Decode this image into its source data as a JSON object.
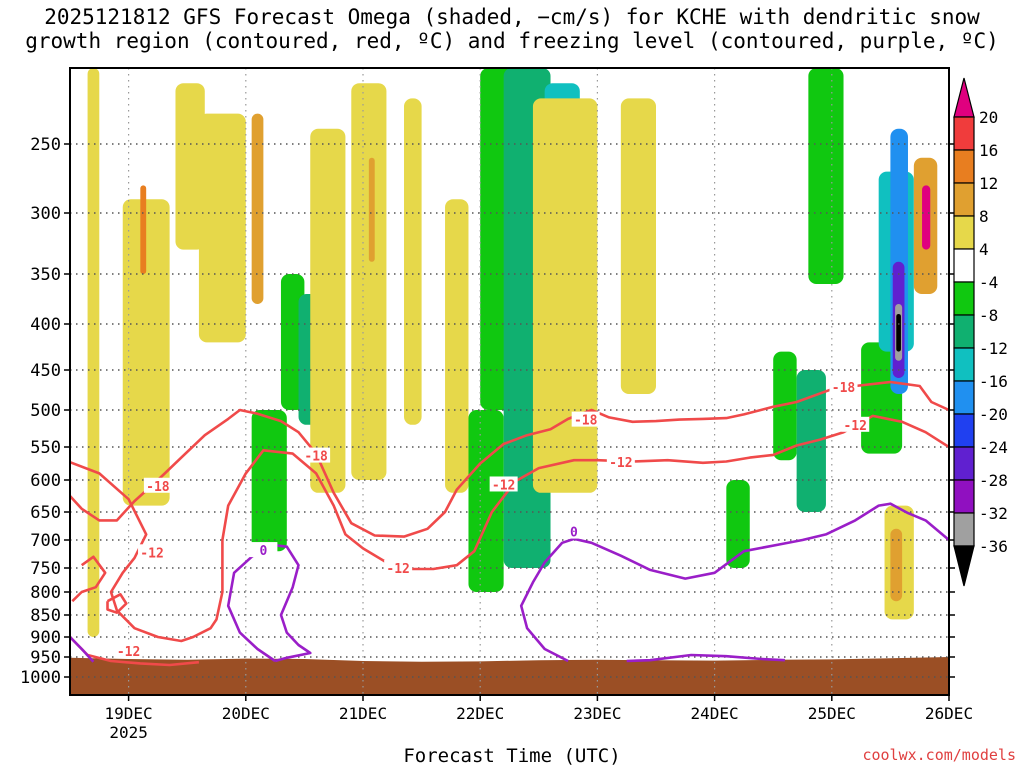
{
  "title": {
    "line1": "2025121812 GFS Forecast Omega (shaded, −cm/s) for KCHE with dendritic snow",
    "line2": "growth region (contoured, red, ºC) and freezing level (contoured, purple, ºC)"
  },
  "credit": "coolwx.com/models",
  "chart_data": {
    "type": "heatmap",
    "title": "2025121812 GFS Forecast Omega (shaded, −cm/s) for KCHE with dendritic snow growth region (contoured, red, ºC) and freezing level (contoured, purple, ºC)",
    "xlabel": "Forecast Time (UTC)",
    "ylabel": "Pressure (hPa)",
    "x_ticks": [
      "19DEC",
      "20DEC",
      "21DEC",
      "22DEC",
      "23DEC",
      "24DEC",
      "25DEC",
      "26DEC"
    ],
    "x_year_label": "2025",
    "y_ticks": [
      250,
      300,
      350,
      400,
      450,
      500,
      550,
      600,
      650,
      700,
      750,
      800,
      850,
      900,
      950,
      1000
    ],
    "ylim": [
      200,
      1050
    ],
    "xlim_days": [
      18.5,
      26.0
    ],
    "colorbar": {
      "labels": [
        "20",
        "16",
        "12",
        "8",
        "4",
        "-4",
        "-8",
        "-12",
        "-16",
        "-20",
        "-24",
        "-28",
        "-32",
        "-36"
      ],
      "bins": [
        {
          "range": "> 20",
          "color": "#e0007f"
        },
        {
          "range": "16 to 20",
          "color": "#f03c3c"
        },
        {
          "range": "12 to 16",
          "color": "#e87e20"
        },
        {
          "range": "8 to 12",
          "color": "#e0a030"
        },
        {
          "range": "4 to 8",
          "color": "#e6d84a"
        },
        {
          "range": "-4 to 4",
          "color": "#ffffff"
        },
        {
          "range": "-8 to -4",
          "color": "#10c810"
        },
        {
          "range": "-12 to -8",
          "color": "#10b070"
        },
        {
          "range": "-16 to -12",
          "color": "#10c0c0"
        },
        {
          "range": "-20 to -16",
          "color": "#2090f0"
        },
        {
          "range": "-24 to -20",
          "color": "#2040f0"
        },
        {
          "range": "-28 to -24",
          "color": "#6020d0"
        },
        {
          "range": "-32 to -28",
          "color": "#9010c0"
        },
        {
          "range": "-36 to -32",
          "color": "#a0a0a0"
        },
        {
          "range": "< -36",
          "color": "#000000"
        }
      ]
    },
    "ground_color": "#9b4f25",
    "contours": [
      {
        "name": "dgz-upper",
        "level": -18,
        "color": "#f04a4a",
        "labels": [
          {
            "t": 19.25,
            "p": 609,
            "text": "-18"
          },
          {
            "t": 20.6,
            "p": 563,
            "text": "-18"
          },
          {
            "t": 22.9,
            "p": 513,
            "text": "-18"
          },
          {
            "t": 25.1,
            "p": 471,
            "text": "-18"
          }
        ],
        "points": [
          [
            18.5,
            625
          ],
          [
            18.6,
            645
          ],
          [
            18.75,
            665
          ],
          [
            18.9,
            665
          ],
          [
            19.05,
            633
          ],
          [
            19.25,
            600
          ],
          [
            19.45,
            566
          ],
          [
            19.65,
            534
          ],
          [
            19.85,
            512
          ],
          [
            19.95,
            500
          ],
          [
            20.1,
            505
          ],
          [
            20.3,
            515
          ],
          [
            20.45,
            530
          ],
          [
            20.6,
            560
          ],
          [
            20.75,
            620
          ],
          [
            20.9,
            670
          ],
          [
            21.1,
            692
          ],
          [
            21.35,
            694
          ],
          [
            21.55,
            680
          ],
          [
            21.7,
            650
          ],
          [
            21.8,
            615
          ],
          [
            22.0,
            575
          ],
          [
            22.2,
            546
          ],
          [
            22.4,
            534
          ],
          [
            22.6,
            526
          ],
          [
            22.75,
            512
          ],
          [
            22.95,
            500
          ],
          [
            23.1,
            510
          ],
          [
            23.3,
            516
          ],
          [
            23.5,
            515
          ],
          [
            23.7,
            513
          ],
          [
            23.9,
            512
          ],
          [
            24.1,
            511
          ],
          [
            24.25,
            506
          ],
          [
            24.5,
            496
          ],
          [
            24.7,
            490
          ],
          [
            25.0,
            474
          ],
          [
            25.2,
            470
          ],
          [
            25.5,
            465
          ],
          [
            25.75,
            470
          ],
          [
            25.85,
            490
          ],
          [
            26.0,
            500
          ]
        ]
      },
      {
        "name": "dgz-lower",
        "level": -12,
        "color": "#f04a4a",
        "labels": [
          {
            "t": 19.2,
            "p": 722,
            "text": "-12"
          },
          {
            "t": 19.0,
            "p": 935,
            "text": "-12"
          },
          {
            "t": 21.3,
            "p": 750,
            "text": "-12"
          },
          {
            "t": 22.2,
            "p": 607,
            "text": "-12"
          },
          {
            "t": 23.2,
            "p": 573,
            "text": "-12"
          },
          {
            "t": 25.2,
            "p": 520,
            "text": "-12"
          }
        ],
        "points": [
          [
            18.5,
            573
          ],
          [
            18.75,
            590
          ],
          [
            19.0,
            630
          ],
          [
            19.15,
            690
          ],
          [
            19.05,
            732
          ],
          [
            18.95,
            760
          ],
          [
            18.85,
            800
          ],
          [
            18.9,
            840
          ],
          [
            19.05,
            880
          ],
          [
            19.25,
            900
          ],
          [
            19.45,
            910
          ],
          [
            19.55,
            900
          ],
          [
            19.7,
            880
          ],
          [
            19.75,
            860
          ],
          [
            19.8,
            800
          ],
          [
            19.8,
            700
          ],
          [
            19.85,
            640
          ],
          [
            20.0,
            590
          ],
          [
            20.15,
            555
          ],
          [
            20.4,
            560
          ],
          [
            20.6,
            590
          ],
          [
            20.75,
            640
          ],
          [
            20.85,
            690
          ],
          [
            21.0,
            715
          ],
          [
            21.2,
            740
          ],
          [
            21.4,
            752
          ],
          [
            21.6,
            752
          ],
          [
            21.8,
            745
          ],
          [
            21.95,
            720
          ],
          [
            22.1,
            650
          ],
          [
            22.3,
            602
          ],
          [
            22.5,
            582
          ],
          [
            22.8,
            570
          ],
          [
            23.0,
            570
          ],
          [
            23.3,
            572
          ],
          [
            23.6,
            570
          ],
          [
            23.9,
            574
          ],
          [
            24.1,
            572
          ],
          [
            24.3,
            566
          ],
          [
            24.5,
            562
          ],
          [
            24.7,
            548
          ],
          [
            24.9,
            540
          ],
          [
            25.1,
            530
          ],
          [
            25.35,
            508
          ],
          [
            25.6,
            516
          ],
          [
            25.8,
            530
          ],
          [
            25.95,
            545
          ],
          [
            26.0,
            550
          ]
        ]
      },
      {
        "name": "dgz-lower-near-ground",
        "level": -12,
        "color": "#f04a4a",
        "labels": [],
        "points": [
          [
            18.5,
            900
          ],
          [
            18.65,
            945
          ],
          [
            18.85,
            960
          ],
          [
            19.1,
            966
          ],
          [
            19.35,
            970
          ],
          [
            19.6,
            963
          ]
        ]
      },
      {
        "name": "dgz-lower-pocket",
        "level": -12,
        "color": "#f04a4a",
        "labels": [],
        "points": [
          [
            18.6,
            745
          ],
          [
            18.7,
            730
          ],
          [
            18.8,
            760
          ],
          [
            18.72,
            790
          ],
          [
            18.6,
            800
          ],
          [
            18.52,
            820
          ]
        ]
      },
      {
        "name": "dgz-small-loop",
        "level": -12,
        "color": "#f04a4a",
        "labels": [],
        "points": [
          [
            18.82,
            820
          ],
          [
            18.93,
            805
          ],
          [
            18.98,
            825
          ],
          [
            18.9,
            845
          ],
          [
            18.82,
            838
          ],
          [
            18.82,
            820
          ]
        ]
      },
      {
        "name": "freezing-level-1",
        "level": 0,
        "color": "#9a1ec8",
        "labels": [
          {
            "t": 20.15,
            "p": 718,
            "text": "0"
          }
        ],
        "points": [
          [
            20.25,
            960
          ],
          [
            20.35,
            952
          ],
          [
            20.55,
            940
          ],
          [
            20.45,
            920
          ],
          [
            20.35,
            890
          ],
          [
            20.3,
            850
          ],
          [
            20.4,
            790
          ],
          [
            20.45,
            745
          ],
          [
            20.35,
            712
          ],
          [
            20.2,
            708
          ],
          [
            20.05,
            730
          ],
          [
            19.9,
            760
          ],
          [
            19.85,
            830
          ],
          [
            19.95,
            890
          ],
          [
            20.1,
            930
          ],
          [
            20.25,
            960
          ]
        ]
      },
      {
        "name": "freezing-level-2",
        "level": 0,
        "color": "#9a1ec8",
        "labels": [
          {
            "t": 22.8,
            "p": 685,
            "text": "0"
          }
        ],
        "points": [
          [
            22.75,
            960
          ],
          [
            22.55,
            930
          ],
          [
            22.4,
            880
          ],
          [
            22.35,
            830
          ],
          [
            22.45,
            780
          ],
          [
            22.55,
            740
          ],
          [
            22.7,
            705
          ],
          [
            22.8,
            698
          ],
          [
            22.95,
            705
          ],
          [
            23.2,
            728
          ],
          [
            23.45,
            754
          ],
          [
            23.75,
            772
          ],
          [
            24.0,
            760
          ],
          [
            24.25,
            720
          ],
          [
            24.55,
            708
          ],
          [
            24.75,
            700
          ],
          [
            24.95,
            690
          ],
          [
            25.2,
            665
          ],
          [
            25.4,
            640
          ],
          [
            25.5,
            637
          ],
          [
            25.65,
            652
          ],
          [
            25.8,
            665
          ],
          [
            26.0,
            700
          ]
        ]
      },
      {
        "name": "freezing-level-3",
        "level": 0,
        "color": "#9a1ec8",
        "labels": [],
        "points": [
          [
            23.25,
            960
          ],
          [
            23.45,
            958
          ],
          [
            23.8,
            945
          ],
          [
            24.1,
            948
          ],
          [
            24.4,
            955
          ],
          [
            24.6,
            958
          ]
        ]
      },
      {
        "name": "freezing-level-4",
        "level": 0,
        "color": "#9a1ec8",
        "labels": [],
        "points": [
          [
            18.5,
            900
          ],
          [
            18.6,
            930
          ],
          [
            18.7,
            962
          ]
        ]
      }
    ],
    "shaded_regions": [
      {
        "t": [
          18.65,
          18.75
        ],
        "p": [
          200,
          900
        ],
        "value": 6
      },
      {
        "t": [
          18.95,
          19.35
        ],
        "p": [
          290,
          640
        ],
        "value": 6
      },
      {
        "t": [
          19.1,
          19.15
        ],
        "p": [
          280,
          350
        ],
        "value": 14
      },
      {
        "t": [
          19.4,
          19.65
        ],
        "p": [
          210,
          330
        ],
        "value": 6
      },
      {
        "t": [
          19.6,
          20.0
        ],
        "p": [
          230,
          420
        ],
        "value": 6
      },
      {
        "t": [
          20.05,
          20.15
        ],
        "p": [
          230,
          380
        ],
        "value": 10
      },
      {
        "t": [
          20.05,
          20.35
        ],
        "p": [
          500,
          720
        ],
        "value": -6
      },
      {
        "t": [
          20.3,
          20.5
        ],
        "p": [
          350,
          500
        ],
        "value": -6
      },
      {
        "t": [
          20.45,
          20.75
        ],
        "p": [
          370,
          520
        ],
        "value": -10
      },
      {
        "t": [
          20.55,
          20.85
        ],
        "p": [
          240,
          620
        ],
        "value": 6
      },
      {
        "t": [
          20.9,
          21.2
        ],
        "p": [
          210,
          600
        ],
        "value": 6
      },
      {
        "t": [
          21.05,
          21.1
        ],
        "p": [
          260,
          340
        ],
        "value": 10
      },
      {
        "t": [
          21.35,
          21.5
        ],
        "p": [
          220,
          520
        ],
        "value": 6
      },
      {
        "t": [
          21.7,
          21.9
        ],
        "p": [
          290,
          620
        ],
        "value": 6
      },
      {
        "t": [
          21.9,
          22.2
        ],
        "p": [
          500,
          800
        ],
        "value": -6
      },
      {
        "t": [
          22.0,
          22.4
        ],
        "p": [
          200,
          500
        ],
        "value": -8
      },
      {
        "t": [
          22.2,
          22.6
        ],
        "p": [
          200,
          750
        ],
        "value": -10
      },
      {
        "t": [
          22.55,
          22.85
        ],
        "p": [
          210,
          500
        ],
        "value": -14
      },
      {
        "t": [
          22.45,
          23.0
        ],
        "p": [
          220,
          620
        ],
        "value": 6
      },
      {
        "t": [
          23.2,
          23.5
        ],
        "p": [
          220,
          480
        ],
        "value": 6
      },
      {
        "t": [
          24.1,
          24.3
        ],
        "p": [
          600,
          750
        ],
        "value": -6
      },
      {
        "t": [
          24.5,
          24.7
        ],
        "p": [
          430,
          570
        ],
        "value": -6
      },
      {
        "t": [
          24.7,
          24.95
        ],
        "p": [
          450,
          650
        ],
        "value": -10
      },
      {
        "t": [
          24.8,
          25.1
        ],
        "p": [
          200,
          360
        ],
        "value": -6
      },
      {
        "t": [
          25.25,
          25.6
        ],
        "p": [
          420,
          560
        ],
        "value": -8
      },
      {
        "t": [
          25.4,
          25.7
        ],
        "p": [
          270,
          430
        ],
        "value": -14
      },
      {
        "t": [
          25.5,
          25.65
        ],
        "p": [
          240,
          480
        ],
        "value": -20
      },
      {
        "t": [
          25.52,
          25.62
        ],
        "p": [
          340,
          460
        ],
        "value": -26
      },
      {
        "t": [
          25.54,
          25.6
        ],
        "p": [
          380,
          440
        ],
        "value": -34
      },
      {
        "t": [
          25.55,
          25.59
        ],
        "p": [
          390,
          430
        ],
        "value": -40
      },
      {
        "t": [
          25.7,
          25.9
        ],
        "p": [
          260,
          370
        ],
        "value": 10
      },
      {
        "t": [
          25.77,
          25.84
        ],
        "p": [
          280,
          330
        ],
        "value": 22
      },
      {
        "t": [
          25.45,
          25.7
        ],
        "p": [
          640,
          860
        ],
        "value": 6
      },
      {
        "t": [
          25.5,
          25.6
        ],
        "p": [
          680,
          820
        ],
        "value": 12
      }
    ]
  }
}
